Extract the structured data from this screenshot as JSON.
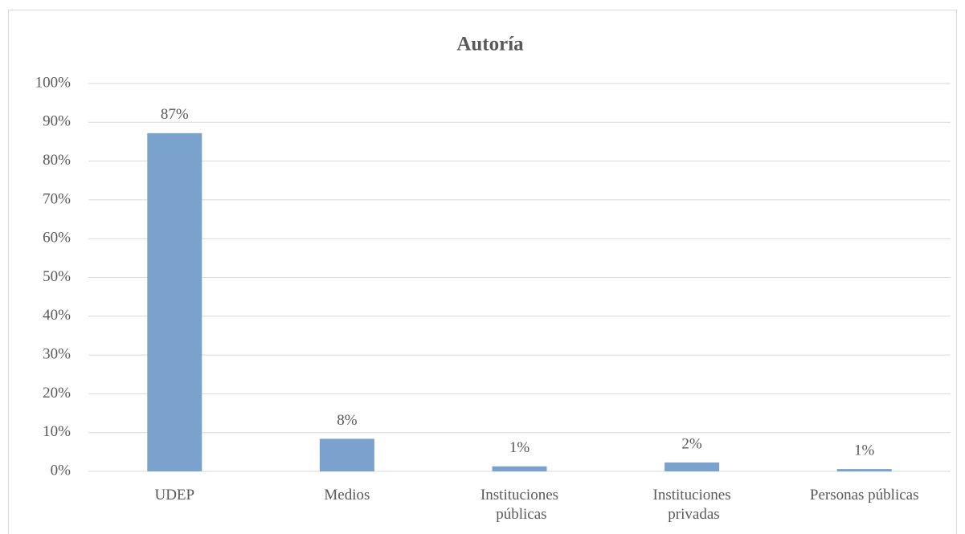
{
  "chart_data": {
    "type": "bar",
    "title": "Autoría",
    "categories": [
      "UDEP",
      "Medios",
      "Instituciones públicas",
      "Instituciones privadas",
      "Personas públicas"
    ],
    "values": [
      87.2,
      8.4,
      1.3,
      2.3,
      0.6
    ],
    "value_labels": [
      "87%",
      "8%",
      "1%",
      "2%",
      "1%"
    ],
    "color": "#7ba2cc",
    "ylim": [
      0,
      100
    ],
    "yticks": [
      {
        "value": 0,
        "label": "0%"
      },
      {
        "value": 10,
        "label": "10%"
      },
      {
        "value": 20,
        "label": "20%"
      },
      {
        "value": 30,
        "label": "30%"
      },
      {
        "value": 40,
        "label": "40%"
      },
      {
        "value": 50,
        "label": "50%"
      },
      {
        "value": 60,
        "label": "60%"
      },
      {
        "value": 70,
        "label": "70%"
      },
      {
        "value": 80,
        "label": "80%"
      },
      {
        "value": 90,
        "label": "90%"
      },
      {
        "value": 100,
        "label": "100%"
      }
    ],
    "grid": true
  }
}
